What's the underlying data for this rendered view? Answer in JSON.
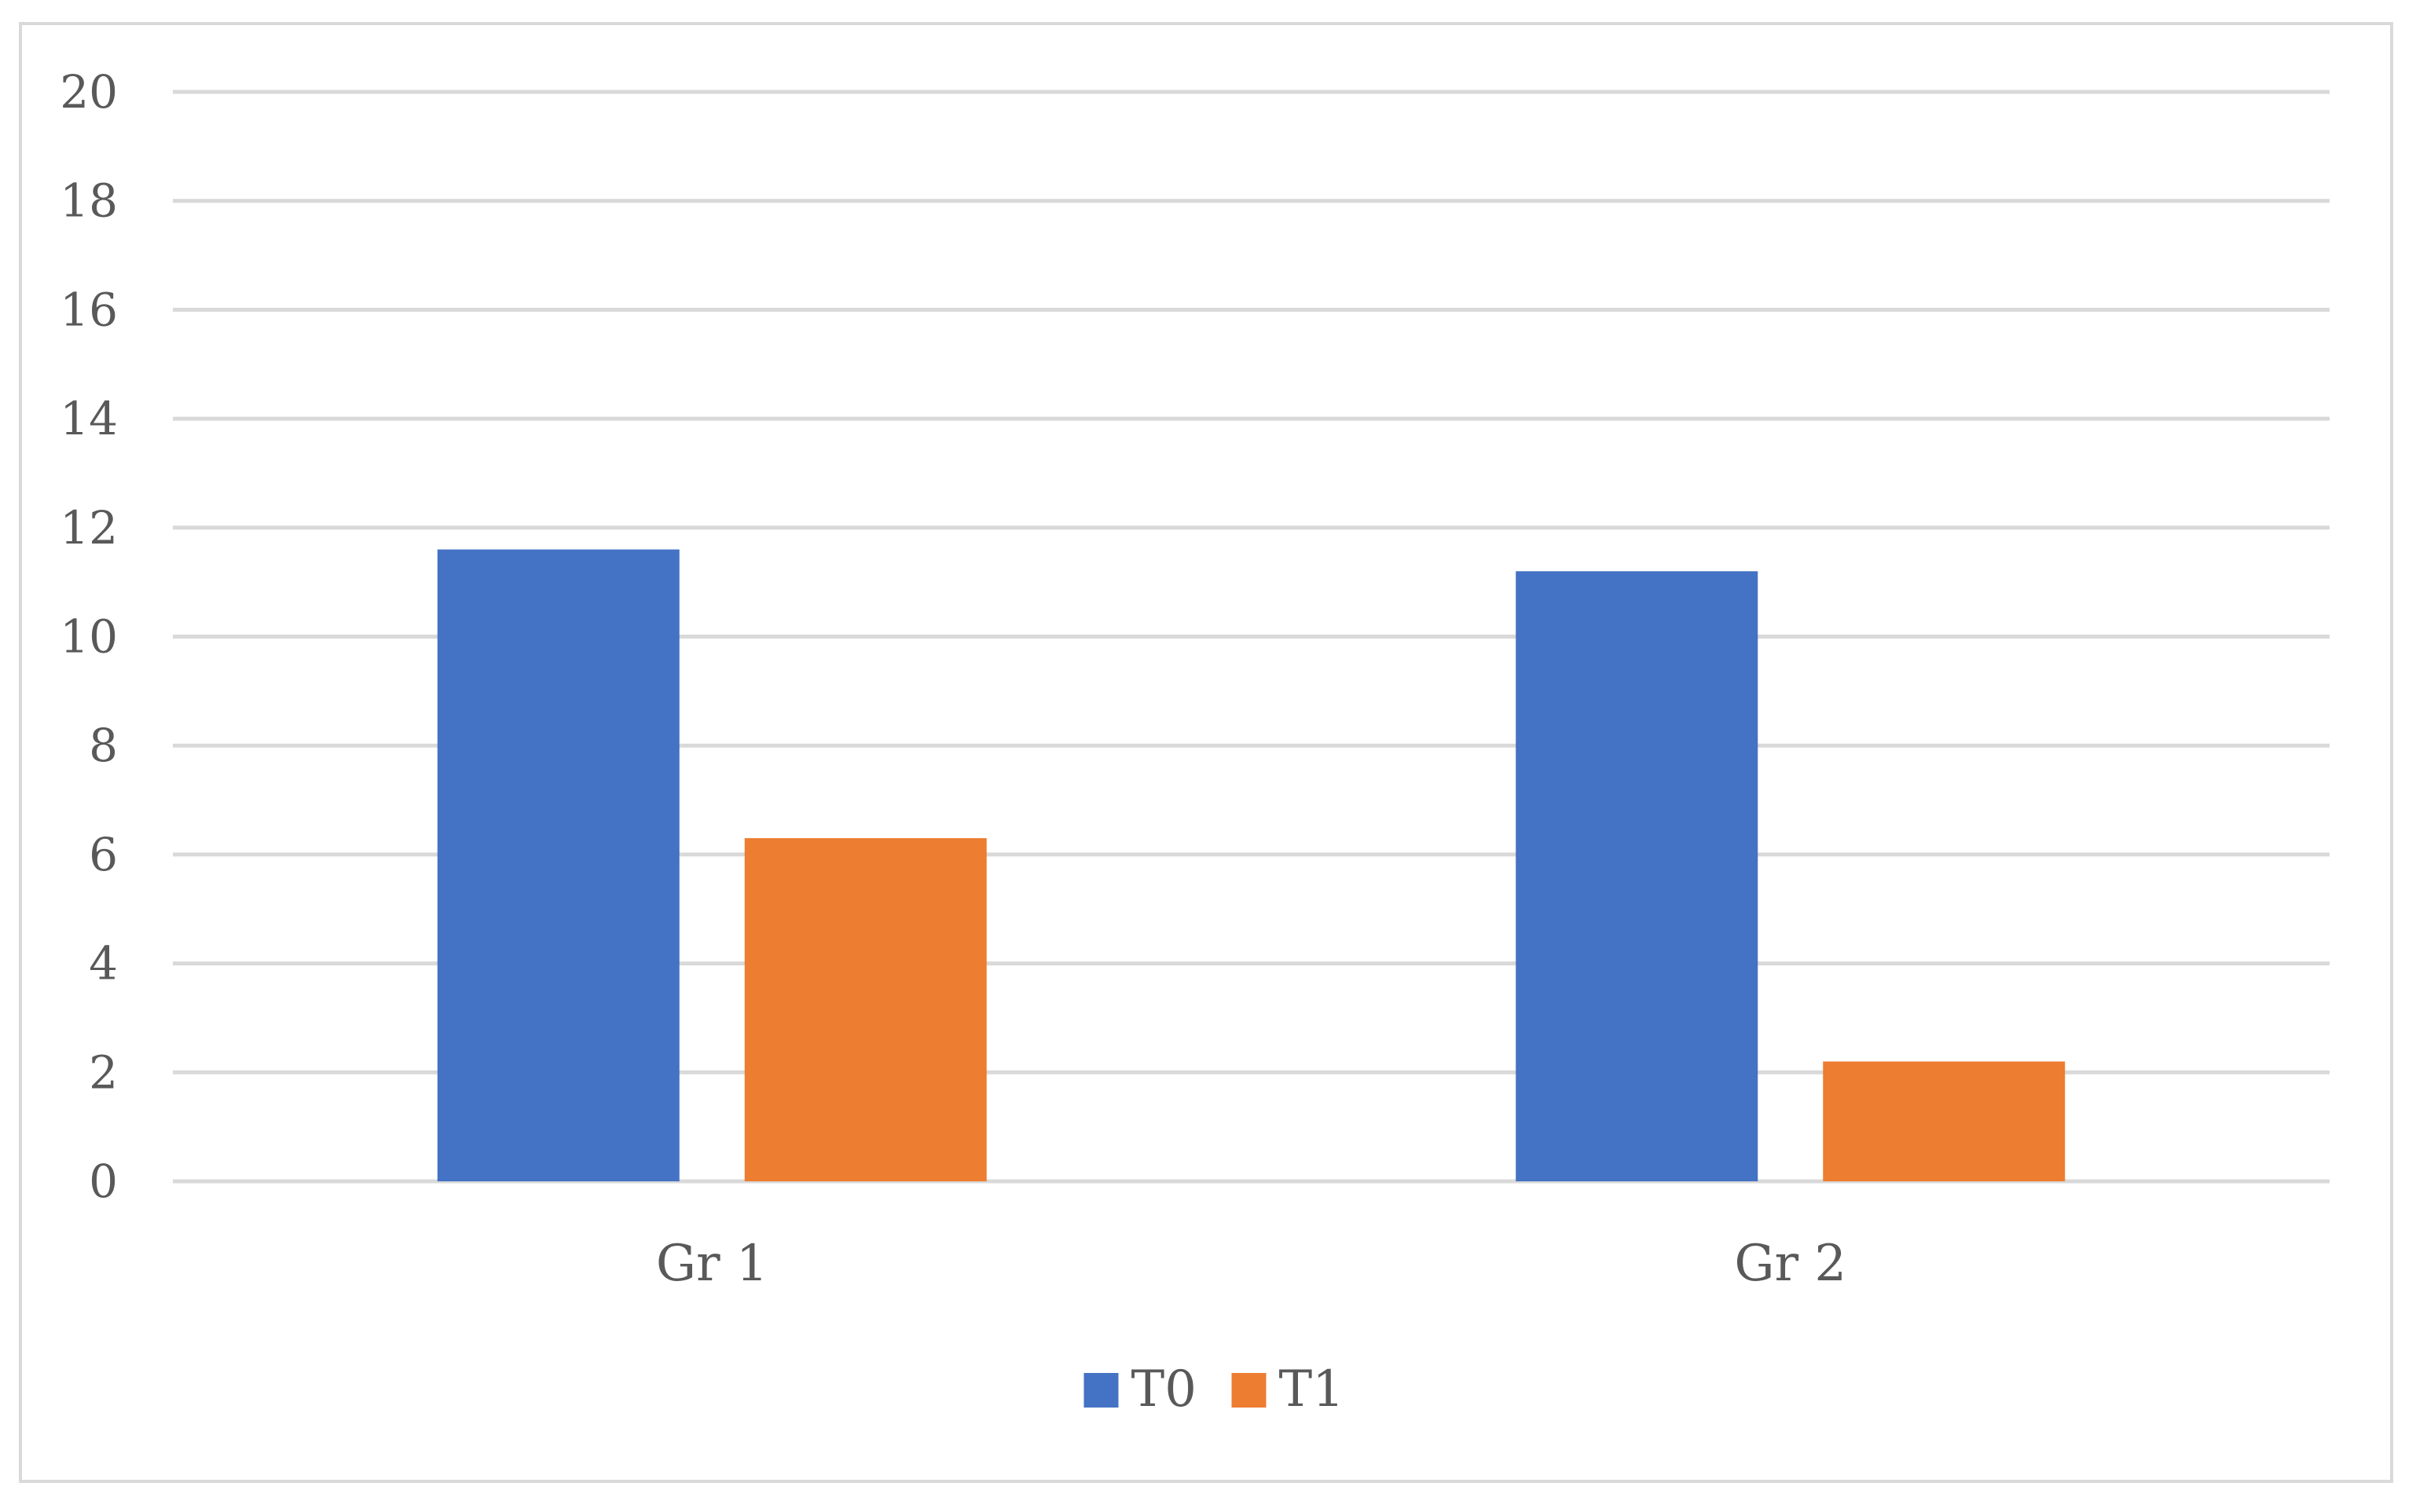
{
  "chart_data": {
    "type": "bar",
    "title": "",
    "xlabel": "",
    "ylabel": "",
    "categories": [
      "Gr 1",
      "Gr 2"
    ],
    "series": [
      {
        "name": "T0",
        "values": [
          11.6,
          11.2
        ],
        "color": "#4472C4"
      },
      {
        "name": "T1",
        "values": [
          6.3,
          2.2
        ],
        "color": "#ED7D31"
      }
    ],
    "ylim": [
      0,
      20
    ],
    "yticks": [
      0,
      2,
      4,
      6,
      8,
      10,
      12,
      14,
      16,
      18,
      20
    ],
    "grid": true,
    "legend_position": "bottom-center",
    "colors": {
      "gridline": "#d9d9d9",
      "text": "#595959",
      "frame": "#d9d9d9"
    }
  }
}
